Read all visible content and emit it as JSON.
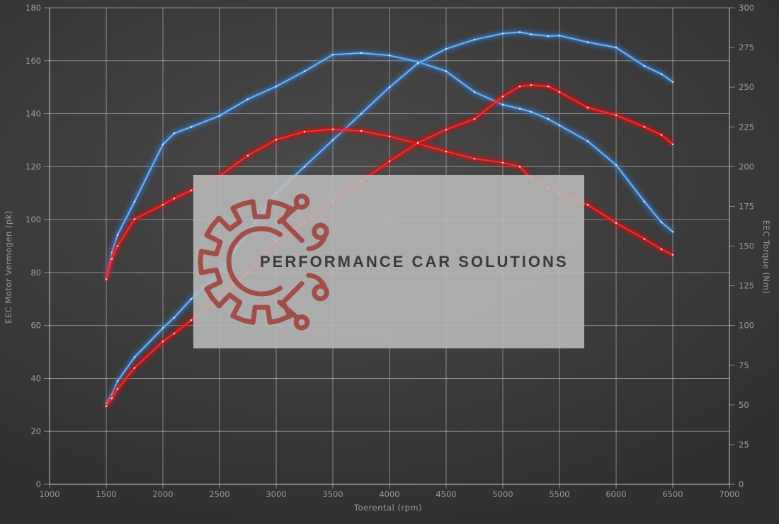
{
  "watermark": {
    "brand": "PERFORMANCE CAR SOLUTIONS",
    "logo_icon": "gear-circuit-icon"
  },
  "colors": {
    "background_center": "#4b4b4b",
    "background_edge": "#303030",
    "grid": "rgba(255,255,255,0.42)",
    "axis_frame": "rgba(255,255,255,0.55)",
    "tick_text": "#9b9b9b",
    "blue_core": "#85b6ec",
    "blue_glow": "#2e7fd6",
    "blue_marker": "#d9eaff",
    "red_core": "#ff2e2e",
    "red_glow": "#dd1111",
    "red_marker": "#ffdcdc",
    "watermark_bg": "rgba(187,187,187,0.88)",
    "watermark_text": "#3a3a3a",
    "watermark_logo": "#9e3a33"
  },
  "chart_data": {
    "type": "line",
    "title": "",
    "xlabel": "Toerental (rpm)",
    "ylabel_left": "EEC Motor Vermogen (pk)",
    "ylabel_right": "EEC Torque (Nm)",
    "x_range": [
      1000,
      7000
    ],
    "y_left_range": [
      0,
      180
    ],
    "y_right_range": [
      0,
      300
    ],
    "x_ticks": [
      1000,
      1500,
      2000,
      2500,
      3000,
      3500,
      4000,
      4500,
      5000,
      5500,
      6000,
      6500,
      7000
    ],
    "y_left_ticks": [
      0,
      20,
      40,
      60,
      80,
      100,
      120,
      140,
      160,
      180
    ],
    "y_right_ticks": [
      0,
      25,
      50,
      75,
      100,
      125,
      150,
      175,
      200,
      225,
      250,
      275,
      300
    ],
    "grid": true,
    "legend": "none",
    "rpm": [
      1500,
      1550,
      1600,
      1750,
      2000,
      2100,
      2250,
      2500,
      2750,
      3000,
      3250,
      3500,
      3750,
      4000,
      4250,
      4500,
      4750,
      5000,
      5150,
      5250,
      5400,
      5500,
      5750,
      6000,
      6250,
      6400,
      6500
    ],
    "series": [
      {
        "name": "torque-blue",
        "axis": "right",
        "unit": "Nm",
        "color_key": "blue",
        "peak": "271.5 Nm @ 3750 rpm",
        "values": [
          130,
          146,
          157,
          178,
          214,
          221,
          225,
          232,
          242.5,
          250.5,
          260,
          270.5,
          271.5,
          270,
          266,
          260,
          247,
          239,
          236.5,
          234.5,
          230,
          226,
          216,
          201,
          178,
          165,
          159
        ]
      },
      {
        "name": "power-blue",
        "axis": "left",
        "unit": "pk",
        "color_key": "blue",
        "peak": "170.8 pk @ 5150 rpm",
        "values": [
          30.5,
          34,
          39,
          48,
          59,
          63,
          70,
          80,
          95,
          110,
          120,
          130,
          140,
          150,
          159,
          164.5,
          168,
          170.3,
          170.8,
          170,
          169.3,
          169.5,
          167,
          165,
          158,
          155,
          152
        ]
      },
      {
        "name": "torque-red",
        "axis": "right",
        "unit": "Nm",
        "color_key": "red",
        "peak": "223.5 Nm @ 3500 rpm",
        "values": [
          129,
          142,
          150,
          167,
          176,
          180,
          185,
          194,
          207,
          217,
          222,
          223.5,
          222.5,
          219,
          214.5,
          209.5,
          205,
          202.5,
          200,
          192.5,
          187,
          183,
          176,
          164.5,
          154.5,
          148,
          144.5
        ]
      },
      {
        "name": "power-red",
        "axis": "left",
        "unit": "pk",
        "color_key": "red",
        "peak": "150.8 pk @ 5250 rpm",
        "values": [
          29.5,
          32.5,
          36,
          44,
          54,
          57,
          62,
          70.5,
          80,
          92,
          99,
          107,
          114.5,
          122,
          129,
          134,
          138,
          146.5,
          150.3,
          150.8,
          150.3,
          148.2,
          142.3,
          139.4,
          135,
          132,
          128.4
        ]
      }
    ]
  }
}
